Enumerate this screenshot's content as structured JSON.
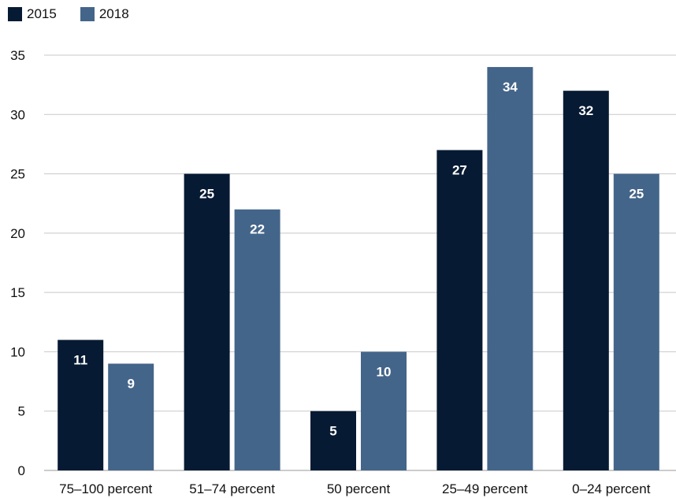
{
  "colors": {
    "s2015": "#071a33",
    "s2018": "#44658a",
    "grid": "#c8c8c8"
  },
  "chart_data": {
    "type": "bar",
    "categories": [
      "75–100 percent",
      "51–74 percent",
      "50 percent",
      "25–49 percent",
      "0–24 percent"
    ],
    "series": [
      {
        "name": "2015",
        "values": [
          11,
          25,
          5,
          27,
          32
        ]
      },
      {
        "name": "2018",
        "values": [
          9,
          22,
          10,
          34,
          25
        ]
      }
    ],
    "title": "",
    "xlabel": "",
    "ylabel": "",
    "ylim": [
      0,
      35
    ],
    "yticks": [
      0,
      5,
      10,
      15,
      20,
      25,
      30,
      35
    ],
    "grid": true,
    "legend": "top-left",
    "data_labels": true
  }
}
